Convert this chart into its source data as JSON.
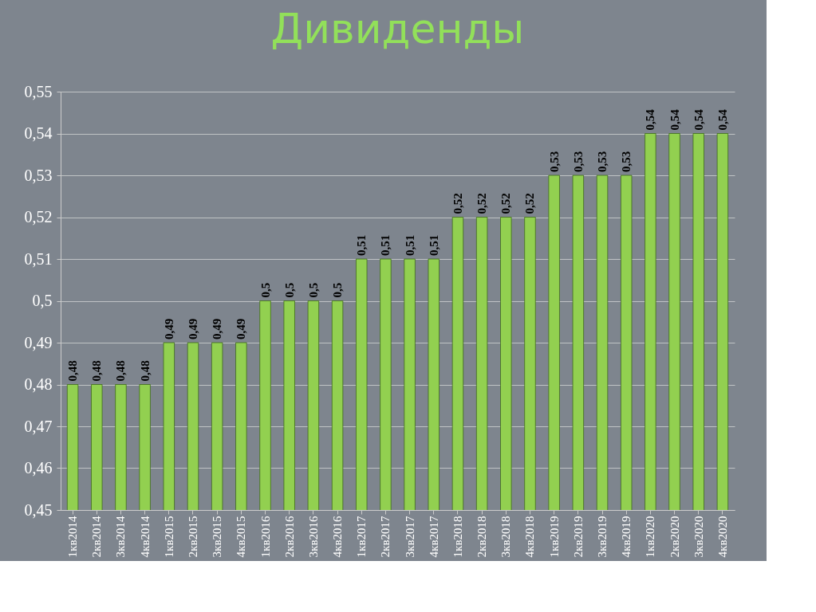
{
  "chart_data": {
    "type": "bar",
    "title": "Дивиденды",
    "categories": [
      "1кв2014",
      "2кв2014",
      "3кв2014",
      "4кв2014",
      "1кв2015",
      "2кв2015",
      "3кв2015",
      "4кв2015",
      "1кв2016",
      "2кв2016",
      "3кв2016",
      "4кв2016",
      "1кв2017",
      "2кв2017",
      "3кв2017",
      "4кв2017",
      "1кв2018",
      "2кв2018",
      "3кв2018",
      "4кв2018",
      "1кв2019",
      "2кв2019",
      "3кв2019",
      "4кв2019",
      "1кв2020",
      "2кв2020",
      "3кв2020",
      "4кв2020"
    ],
    "values": [
      0.48,
      0.48,
      0.48,
      0.48,
      0.49,
      0.49,
      0.49,
      0.49,
      0.5,
      0.5,
      0.5,
      0.5,
      0.51,
      0.51,
      0.51,
      0.51,
      0.52,
      0.52,
      0.52,
      0.52,
      0.53,
      0.53,
      0.53,
      0.53,
      0.54,
      0.54,
      0.54,
      0.54
    ],
    "value_labels": [
      "0,48",
      "0,48",
      "0,48",
      "0,48",
      "0,49",
      "0,49",
      "0,49",
      "0,49",
      "0,5",
      "0,5",
      "0,5",
      "0,5",
      "0,51",
      "0,51",
      "0,51",
      "0,51",
      "0,52",
      "0,52",
      "0,52",
      "0,52",
      "0,53",
      "0,53",
      "0,53",
      "0,53",
      "0,54",
      "0,54",
      "0,54",
      "0,54"
    ],
    "color": "#92d050",
    "ylim": [
      0.45,
      0.55
    ],
    "yticks": [
      {
        "value": 0.45,
        "label": "0,45"
      },
      {
        "value": 0.46,
        "label": "0,46"
      },
      {
        "value": 0.47,
        "label": "0,47"
      },
      {
        "value": 0.48,
        "label": "0,48"
      },
      {
        "value": 0.49,
        "label": "0,49"
      },
      {
        "value": 0.5,
        "label": "0,5"
      },
      {
        "value": 0.51,
        "label": "0,51"
      },
      {
        "value": 0.52,
        "label": "0,52"
      },
      {
        "value": 0.53,
        "label": "0,53"
      },
      {
        "value": 0.54,
        "label": "0,54"
      },
      {
        "value": 0.55,
        "label": "0,55"
      }
    ],
    "grid": "y"
  }
}
